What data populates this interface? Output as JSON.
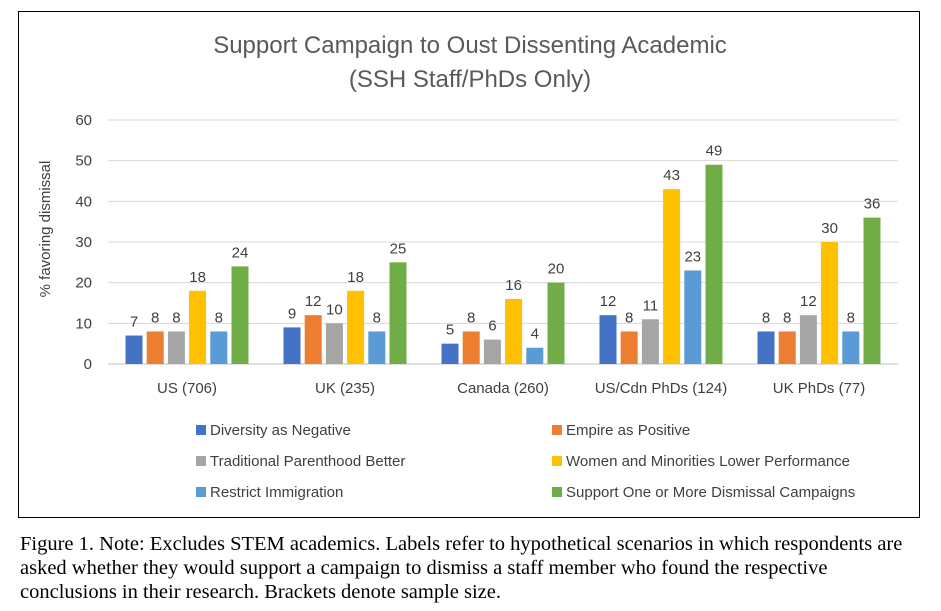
{
  "chart_data": {
    "type": "bar",
    "title": "Support Campaign to Oust Dissenting Academic",
    "subtitle": "(SSH Staff/PhDs Only)",
    "ylabel": "% favoring dismissal",
    "ylim": [
      0,
      60
    ],
    "yticks": [
      0,
      10,
      20,
      30,
      40,
      50,
      60
    ],
    "grid": true,
    "legend_position": "bottom",
    "categories": [
      "US (706)",
      "UK (235)",
      "Canada (260)",
      "US/Cdn PhDs (124)",
      "UK PhDs (77)"
    ],
    "series": [
      {
        "name": "Diversity as Negative",
        "color": "#4472C4",
        "values": [
          7,
          9,
          5,
          12,
          8
        ]
      },
      {
        "name": "Empire as Positive",
        "color": "#ED7D31",
        "values": [
          8,
          12,
          8,
          8,
          8
        ]
      },
      {
        "name": "Traditional Parenthood Better",
        "color": "#A5A5A5",
        "values": [
          8,
          10,
          6,
          11,
          12
        ]
      },
      {
        "name": "Women and Minorities Lower Performance",
        "color": "#FFC000",
        "values": [
          18,
          18,
          16,
          43,
          30
        ]
      },
      {
        "name": "Restrict Immigration",
        "color": "#5B9BD5",
        "values": [
          8,
          8,
          4,
          23,
          8
        ]
      },
      {
        "name": "Support One or More Dismissal Campaigns",
        "color": "#70AD47",
        "values": [
          24,
          25,
          20,
          49,
          36
        ]
      }
    ]
  },
  "caption": "Figure 1. Note: Excludes STEM academics. Labels refer to hypothetical scenarios in which respondents are asked whether they would support a campaign to dismiss a staff member who found the respective conclusions in their research. Brackets denote sample size."
}
